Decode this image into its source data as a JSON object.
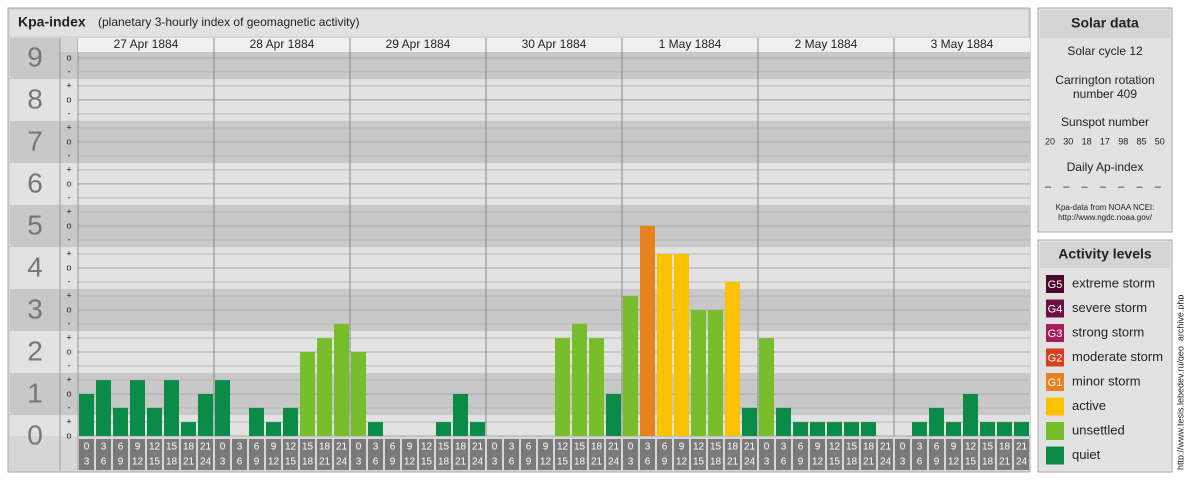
{
  "chart_data": {
    "type": "bar",
    "title": "Kpa-index",
    "subtitle": "(planetary 3-hourly index of geomagnetic activity)",
    "ylim": [
      0,
      9.14
    ],
    "yticks": [
      0,
      1,
      2,
      3,
      4,
      5,
      6,
      7,
      8,
      9
    ],
    "minor_labels": [
      "-",
      "o",
      "+"
    ],
    "grid": true,
    "hours": [
      [
        "0",
        "3"
      ],
      [
        "3",
        "6"
      ],
      [
        "6",
        "9"
      ],
      [
        "9",
        "12"
      ],
      [
        "12",
        "15"
      ],
      [
        "15",
        "18"
      ],
      [
        "18",
        "21"
      ],
      [
        "21",
        "24"
      ]
    ],
    "series": [
      {
        "name": "27 Apr 1884",
        "values": [
          1.0,
          1.33,
          0.67,
          1.33,
          0.67,
          1.33,
          0.33,
          1.0
        ],
        "colors": [
          "#0a8c48",
          "#0a8c48",
          "#0a8c48",
          "#0a8c48",
          "#0a8c48",
          "#0a8c48",
          "#0a8c48",
          "#0a8c48"
        ]
      },
      {
        "name": "28 Apr 1884",
        "values": [
          1.33,
          0,
          0.67,
          0.33,
          0.67,
          2.0,
          2.33,
          2.67
        ],
        "colors": [
          "#0a8c48",
          "#0a8c48",
          "#0a8c48",
          "#0a8c48",
          "#0a8c48",
          "#78bd2a",
          "#78bd2a",
          "#78bd2a"
        ]
      },
      {
        "name": "29 Apr 1884",
        "values": [
          2.0,
          0.33,
          0,
          0,
          0,
          0.33,
          1.0,
          0.33
        ],
        "colors": [
          "#78bd2a",
          "#0a8c48",
          "#0a8c48",
          "#0a8c48",
          "#0a8c48",
          "#0a8c48",
          "#0a8c48",
          "#0a8c48"
        ]
      },
      {
        "name": "30 Apr 1884",
        "values": [
          0,
          0,
          0,
          0,
          2.33,
          2.67,
          2.33,
          1.0
        ],
        "colors": [
          "#0a8c48",
          "#0a8c48",
          "#0a8c48",
          "#0a8c48",
          "#78bd2a",
          "#78bd2a",
          "#78bd2a",
          "#0a8c48"
        ]
      },
      {
        "name": "1 May 1884",
        "values": [
          3.33,
          5.0,
          4.33,
          4.33,
          3.0,
          3.0,
          3.67,
          0.67
        ],
        "colors": [
          "#78bd2a",
          "#e8821e",
          "#fcc200",
          "#fcc200",
          "#78bd2a",
          "#78bd2a",
          "#fcc200",
          "#0a8c48"
        ]
      },
      {
        "name": "2 May 1884",
        "values": [
          2.33,
          0.67,
          0.33,
          0.33,
          0.33,
          0.33,
          0.33,
          0
        ],
        "colors": [
          "#78bd2a",
          "#0a8c48",
          "#0a8c48",
          "#0a8c48",
          "#0a8c48",
          "#0a8c48",
          "#0a8c48",
          "#0a8c48"
        ]
      },
      {
        "name": "3 May 1884",
        "values": [
          0,
          0.33,
          0.67,
          0.33,
          1.0,
          0.33,
          0.33,
          0.33
        ],
        "colors": [
          "#0a8c48",
          "#0a8c48",
          "#0a8c48",
          "#0a8c48",
          "#0a8c48",
          "#0a8c48",
          "#0a8c48",
          "#0a8c48"
        ]
      }
    ]
  },
  "solar": {
    "title": "Solar data",
    "cycle": "Solar cycle 12",
    "carrington": [
      "Carrington rotation",
      "number 409"
    ],
    "sunspot_title": "Sunspot number",
    "sunspot": [
      20,
      30,
      18,
      17,
      98,
      85,
      50
    ],
    "ap_title": "Daily Ap-index",
    "ap": [
      "–",
      "–",
      "–",
      "–",
      "–",
      "–",
      "–"
    ],
    "source": [
      "Kpa-data from NOAA NCEI:",
      "http://www.ngdc.noaa.gov/"
    ]
  },
  "activity": {
    "title": "Activity levels",
    "levels": [
      {
        "badge": "G5",
        "name": "extreme storm",
        "color": "#4b0a2a"
      },
      {
        "badge": "G4",
        "name": "severe storm",
        "color": "#6d1046"
      },
      {
        "badge": "G3",
        "name": "strong storm",
        "color": "#a51c5a"
      },
      {
        "badge": "G2",
        "name": "moderate storm",
        "color": "#d8401c"
      },
      {
        "badge": "G1",
        "name": "minor storm",
        "color": "#e8821e"
      },
      {
        "name": "active",
        "color": "#fcc200"
      },
      {
        "name": "unsettled",
        "color": "#78bd2a"
      },
      {
        "name": "quiet",
        "color": "#0a8c48"
      }
    ]
  },
  "credit": "http://www.tesis.lebedev.ru/geo_archive.php"
}
